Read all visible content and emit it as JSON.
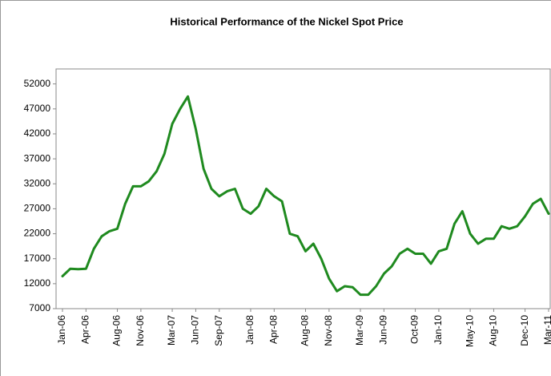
{
  "chart_data": {
    "type": "line",
    "title": "Historical Performance of the Nickel Spot Price",
    "categories": [
      "Jan-06",
      null,
      null,
      "Apr-06",
      null,
      null,
      null,
      "Aug-06",
      null,
      null,
      "Nov-06",
      null,
      null,
      null,
      "Mar-07",
      null,
      null,
      "Jun-07",
      null,
      null,
      "Sep-07",
      null,
      null,
      null,
      "Jan-08",
      null,
      null,
      "Apr-08",
      null,
      null,
      null,
      "Aug-08",
      null,
      null,
      "Nov-08",
      null,
      null,
      null,
      "Mar-09",
      null,
      null,
      "Jun-09",
      null,
      null,
      null,
      "Oct-09",
      null,
      null,
      "Jan-10",
      null,
      null,
      null,
      "May-10",
      null,
      null,
      "Aug-10",
      null,
      null,
      null,
      "Dec-10",
      null,
      null,
      "Mar-11"
    ],
    "series": [
      {
        "name": "Nickel Spot Price",
        "color": "#1f8a1f",
        "values": [
          13500,
          15000,
          14900,
          15000,
          19000,
          21500,
          22500,
          23000,
          28000,
          31500,
          31500,
          32500,
          34500,
          38000,
          44000,
          47000,
          49500,
          43000,
          35000,
          31000,
          29500,
          30500,
          31000,
          27000,
          26000,
          27500,
          31000,
          29500,
          28500,
          22000,
          21500,
          18500,
          20000,
          17000,
          13000,
          10500,
          11500,
          11300,
          9800,
          9800,
          11500,
          14000,
          15500,
          18000,
          19000,
          18000,
          18000,
          16000,
          18500,
          19000,
          24000,
          26500,
          22000,
          20000,
          21000,
          21000,
          23500,
          23000,
          23500,
          25500,
          28000,
          29000,
          26000
        ]
      }
    ],
    "ylim": [
      7000,
      55000
    ],
    "yticks": [
      7000,
      12000,
      17000,
      22000,
      27000,
      32000,
      37000,
      42000,
      47000,
      52000
    ]
  }
}
